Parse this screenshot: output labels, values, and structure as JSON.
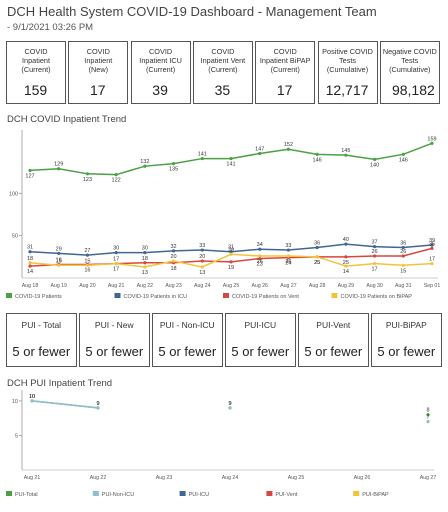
{
  "header": {
    "title": "DCH Health System COVID-19 Dashboard - Management Team",
    "subtitle": "- 9/1/2021 03:26 PM"
  },
  "kpis": [
    {
      "label": "COVID\nInpatient\n(Current)",
      "value": "159",
      "align": "c"
    },
    {
      "label": "COVID\nInpatient\n(New)",
      "value": "17",
      "align": "c"
    },
    {
      "label": "COVID\nInpatient ICU\n(Current)",
      "value": "39",
      "align": "c"
    },
    {
      "label": "COVID\nInpatient Vent\n(Current)",
      "value": "35",
      "align": "c"
    },
    {
      "label": "COVID\nInpatient BiPAP\n(Current)",
      "value": "17",
      "align": "c"
    },
    {
      "label": "Positive COVID\nTests\n(Cumulative)",
      "value": "12,717",
      "align": "c"
    },
    {
      "label": "Negative COVID\nTests\n(Cumulative)",
      "value": "98,182",
      "align": "r"
    }
  ],
  "pui_cards": [
    {
      "label": "PUI - Total",
      "value": "5 or fewer"
    },
    {
      "label": "PUI - New",
      "value": "5 or fewer"
    },
    {
      "label": "PUI - Non-ICU",
      "value": "5 or fewer"
    },
    {
      "label": "PUI-ICU",
      "value": "5 or fewer"
    },
    {
      "label": "PUI-Vent",
      "value": "5 or fewer"
    },
    {
      "label": "PUI-BiPAP",
      "value": "5 or fewer"
    }
  ],
  "chart_data": [
    {
      "type": "line",
      "title": "DCH COVID Inpatient Trend",
      "categories": [
        "Aug 18",
        "Aug 19",
        "Aug 20",
        "Aug 21",
        "Aug 22",
        "Aug 23",
        "Aug 24",
        "Aug 25",
        "Aug 26",
        "Aug 27",
        "Aug 28",
        "Aug 29",
        "Aug 30",
        "Aug 31",
        "Sep 01"
      ],
      "yticks": [
        100,
        50
      ],
      "ylim": [
        0,
        170
      ],
      "series": [
        {
          "name": "COVID-19 Patients",
          "color": "#4aa143",
          "values": [
            127,
            129,
            123,
            122,
            132,
            135,
            141,
            141,
            147,
            152,
            146,
            145,
            140,
            146,
            159
          ],
          "label_pos": [
            "b",
            "a",
            "b",
            "b",
            "a",
            "b",
            "a",
            "b",
            "a",
            "a",
            "b",
            "a",
            "b",
            "b",
            "a"
          ]
        },
        {
          "name": "COVID-19 Patients in ICU",
          "color": "#3f6791",
          "values": [
            31,
            29,
            27,
            30,
            30,
            32,
            33,
            31,
            34,
            33,
            36,
            40,
            37,
            36,
            39
          ],
          "label_pos": [
            "a",
            "a",
            "a",
            "a",
            "a",
            "a",
            "a",
            "a",
            "a",
            "a",
            "a",
            "a",
            "a",
            "a",
            "a"
          ]
        },
        {
          "name": "COVID-19 Patients on Vent",
          "color": "#d7463f",
          "values": [
            14,
            16,
            16,
            17,
            18,
            18,
            20,
            19,
            23,
            24,
            25,
            25,
            26,
            26,
            35
          ],
          "label_pos": [
            "b",
            "a",
            "b",
            "b",
            "a",
            "b",
            "a",
            "b",
            "b",
            "b",
            "b",
            "b",
            "a",
            "a",
            "a"
          ]
        },
        {
          "name": "COVID-19 Patients on BiPAP",
          "color": "#f2c43a",
          "values": [
            18,
            15,
            15,
            17,
            13,
            20,
            13,
            28,
            26,
            26,
            25,
            14,
            17,
            15,
            17
          ],
          "label_pos": [
            "a",
            "a",
            "a",
            "a",
            "b",
            "a",
            "b",
            "a",
            "b",
            "b",
            "b",
            "b",
            "b",
            "b",
            "a"
          ]
        }
      ]
    },
    {
      "type": "line",
      "title": "DCH PUI Inpatient Trend",
      "categories": [
        "Aug 21",
        "Aug 22",
        "Aug 23",
        "Aug 24",
        "Aug 25",
        "Aug 26",
        "Aug 27"
      ],
      "yticks": [
        10,
        5
      ],
      "ylim": [
        0,
        11
      ],
      "series": [
        {
          "name": "PUI-Total",
          "color": "#4aa143",
          "values": [
            10,
            9,
            null,
            9,
            null,
            null,
            8
          ]
        },
        {
          "name": "PUI-Non-ICU",
          "color": "#8fbfcf",
          "values": [
            10,
            9,
            null,
            9,
            null,
            null,
            7
          ]
        },
        {
          "name": "PUI-ICU",
          "color": "#3f6791",
          "values": [
            null,
            null,
            null,
            null,
            null,
            null,
            null
          ]
        },
        {
          "name": "PUI-Vent",
          "color": "#d7463f",
          "values": [
            null,
            null,
            null,
            null,
            null,
            null,
            null
          ]
        },
        {
          "name": "PUI-BiPAP",
          "color": "#f2c43a",
          "values": [
            null,
            null,
            null,
            null,
            null,
            null,
            null
          ]
        }
      ]
    }
  ]
}
